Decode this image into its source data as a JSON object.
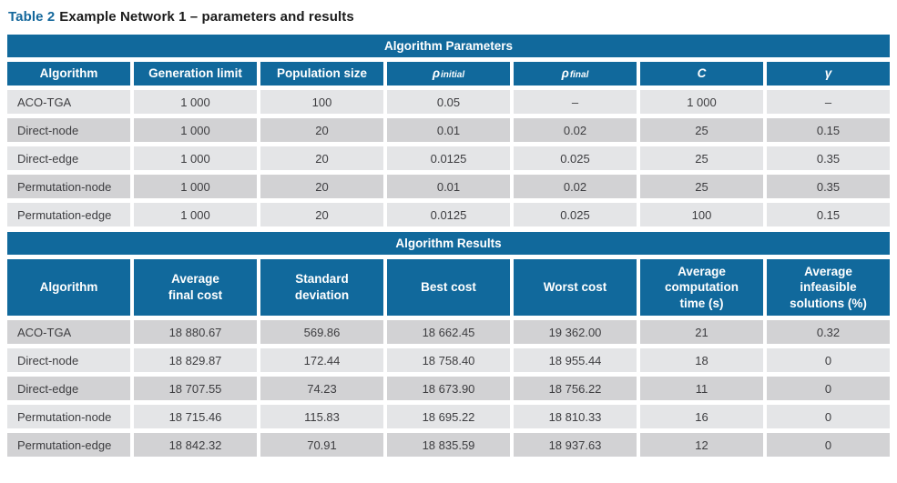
{
  "caption": {
    "label": "Table 2",
    "text": "Example Network 1 – parameters and results"
  },
  "colors": {
    "header_blue": "#11699c",
    "row_light": "#e4e5e7",
    "row_dark": "#d2d2d4",
    "caption_blue": "#15689c"
  },
  "parameters_table": {
    "section_title": "Algorithm Parameters",
    "headers": {
      "algorithm": "Algorithm",
      "generation_limit": "Generation limit",
      "population_size": "Population size",
      "rho_initial": {
        "symbol": "ρ",
        "sub": "initial"
      },
      "rho_final": {
        "symbol": "ρ",
        "sub": "final"
      },
      "c": {
        "symbol": "C"
      },
      "gamma": {
        "symbol": "γ"
      }
    },
    "rows": [
      [
        "ACO-TGA",
        "1 000",
        "100",
        "0.05",
        "–",
        "1 000",
        "–"
      ],
      [
        "Direct-node",
        "1 000",
        "20",
        "0.01",
        "0.02",
        "25",
        "0.15"
      ],
      [
        "Direct-edge",
        "1 000",
        "20",
        "0.0125",
        "0.025",
        "25",
        "0.35"
      ],
      [
        "Permutation-node",
        "1 000",
        "20",
        "0.01",
        "0.02",
        "25",
        "0.35"
      ],
      [
        "Permutation-edge",
        "1 000",
        "20",
        "0.0125",
        "0.025",
        "100",
        "0.15"
      ]
    ]
  },
  "results_table": {
    "section_title": "Algorithm Results",
    "headers": [
      "Algorithm",
      "Average\nfinal cost",
      "Standard\ndeviation",
      "Best cost",
      "Worst cost",
      "Average\ncomputation\ntime (s)",
      "Average\ninfeasible\nsolutions (%)"
    ],
    "rows": [
      [
        "ACO-TGA",
        "18 880.67",
        "569.86",
        "18 662.45",
        "19 362.00",
        "21",
        "0.32"
      ],
      [
        "Direct-node",
        "18 829.87",
        "172.44",
        "18 758.40",
        "18 955.44",
        "18",
        "0"
      ],
      [
        "Direct-edge",
        "18 707.55",
        "74.23",
        "18 673.90",
        "18 756.22",
        "11",
        "0"
      ],
      [
        "Permutation-node",
        "18 715.46",
        "115.83",
        "18 695.22",
        "18 810.33",
        "16",
        "0"
      ],
      [
        "Permutation-edge",
        "18 842.32",
        "70.91",
        "18 835.59",
        "18 937.63",
        "12",
        "0"
      ]
    ]
  }
}
